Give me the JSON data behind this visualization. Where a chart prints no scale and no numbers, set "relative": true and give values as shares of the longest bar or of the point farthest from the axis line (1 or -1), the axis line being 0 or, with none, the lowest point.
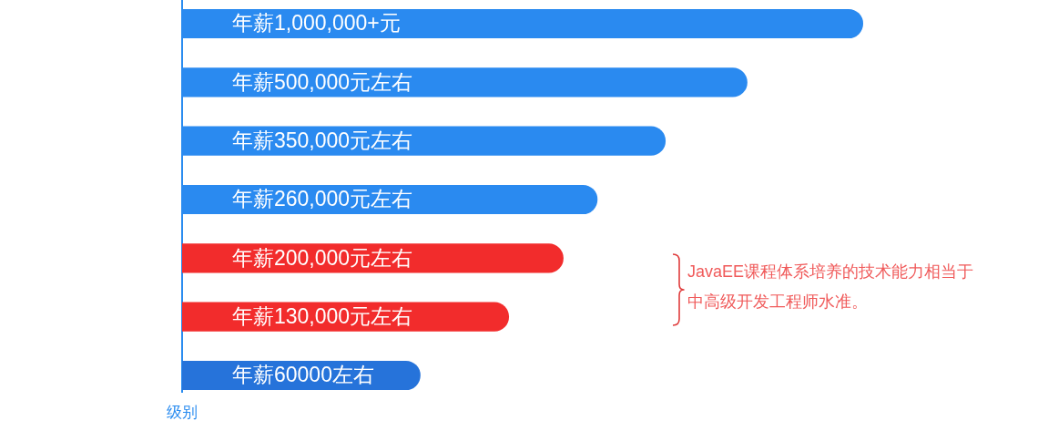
{
  "chart_data": {
    "type": "bar",
    "orientation": "horizontal",
    "relative": true,
    "categories": [
      "年薪1,000,000+元",
      "年薪500,000元左右",
      "年薪350,000元左右",
      "年薪260,000元左右",
      "年薪200,000元左右",
      "年薪130,000元左右",
      "年薪60000左右"
    ],
    "values": [
      1,
      0.83,
      0.71,
      0.61,
      0.56,
      0.48,
      0.35
    ],
    "colors": [
      "#2a8af0",
      "#2a8af0",
      "#2a8af0",
      "#2a8af0",
      "#f22c2c",
      "#f22c2c",
      "#2673da"
    ],
    "ylabel": "级别",
    "annotations": [
      "JavaEE课程体系培养的技术能力相当于中高级开发工程师水准。"
    ]
  }
}
